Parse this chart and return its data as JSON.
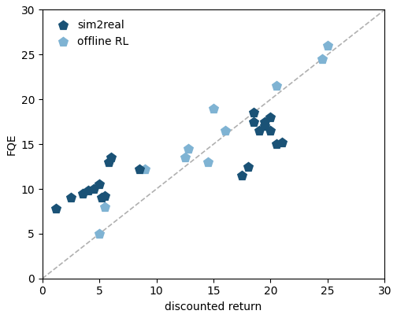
{
  "sim2real": {
    "x": [
      1.2,
      2.5,
      3.5,
      4.0,
      4.5,
      5.0,
      5.2,
      5.5,
      5.8,
      6.0,
      8.5,
      17.5,
      18.0,
      18.5,
      18.5,
      19.0,
      19.5,
      19.5,
      20.0,
      20.0,
      20.5,
      21.0
    ],
    "y": [
      7.8,
      9.0,
      9.5,
      9.8,
      10.0,
      10.5,
      9.0,
      9.2,
      13.0,
      13.5,
      12.2,
      11.5,
      12.5,
      17.5,
      18.5,
      16.5,
      17.0,
      17.5,
      18.0,
      16.5,
      15.0,
      15.2
    ]
  },
  "offline_rl": {
    "x": [
      5.0,
      5.5,
      9.0,
      12.5,
      12.8,
      14.5,
      15.0,
      16.0,
      20.5,
      24.5,
      25.0
    ],
    "y": [
      5.0,
      8.0,
      12.2,
      13.5,
      14.5,
      13.0,
      19.0,
      16.5,
      21.5,
      24.5,
      26.0
    ]
  },
  "dashed_line": [
    0,
    30
  ],
  "sim2real_color": "#1a5276",
  "offline_rl_color": "#7fb3d3",
  "dashed_color": "#b0b0b0",
  "xlabel": "discounted return",
  "ylabel": "FQE",
  "xlim": [
    0,
    30
  ],
  "ylim": [
    0,
    30
  ],
  "xticks": [
    0,
    5,
    10,
    15,
    20,
    25,
    30
  ],
  "yticks": [
    0,
    5,
    10,
    15,
    20,
    25,
    30
  ],
  "marker": "p",
  "markersize": 100,
  "legend_loc": "upper left",
  "figsize": [
    5.04,
    4.04
  ],
  "dpi": 100
}
